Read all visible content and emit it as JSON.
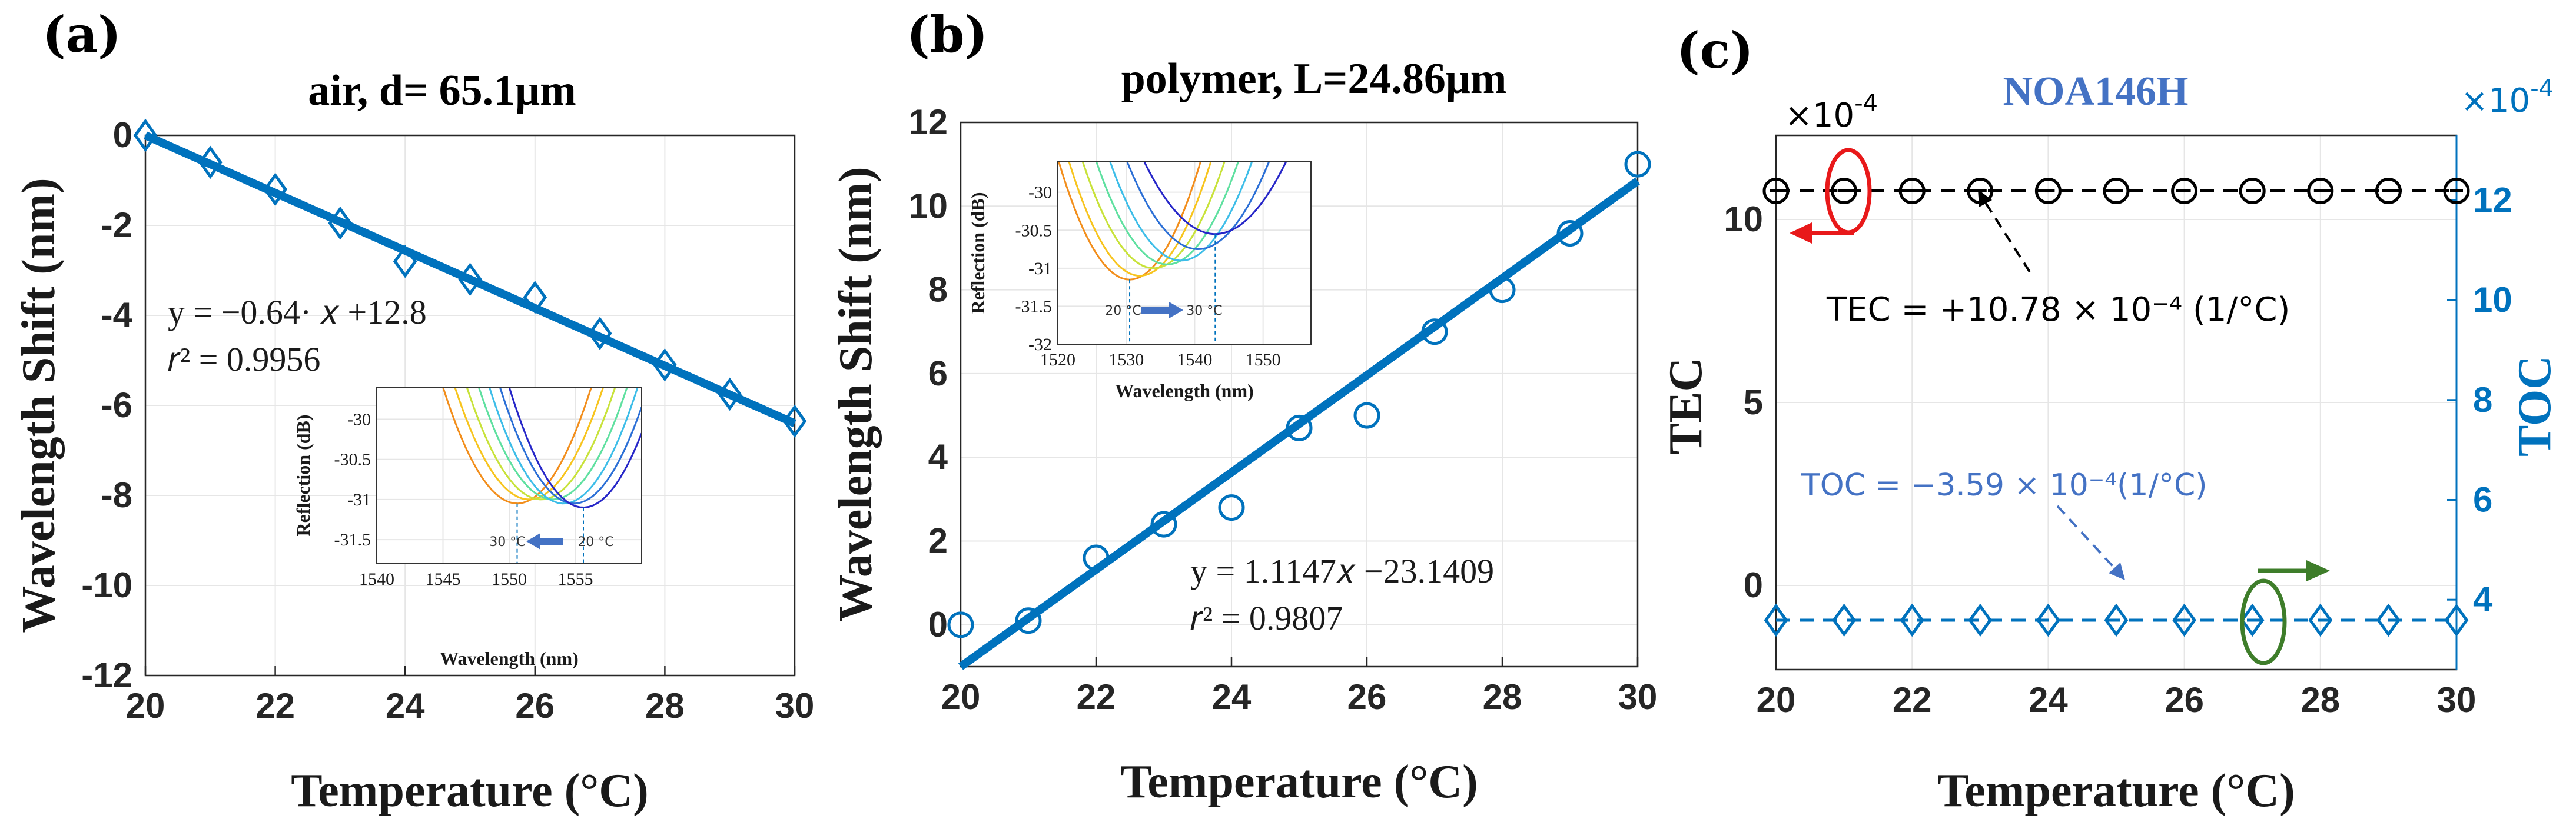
{
  "colors": {
    "main_blue": "#0072BD",
    "legend_blue": "#4472C4",
    "red": "#E8191A",
    "green": "#3E7D2A",
    "black": "#000000",
    "inset_curves": [
      "#F28E1C",
      "#F7C41E",
      "#C8E23A",
      "#5FE0A0",
      "#3DBDE8",
      "#2B6FD6",
      "#2626C8"
    ]
  },
  "chart_data": [
    {
      "panel": "(a)",
      "type": "scatter",
      "title": "air, d= 65.1μm",
      "xlabel": "Temperature (°C)",
      "ylabel": "Wavelength Shift (nm)",
      "xlim": [
        20,
        30
      ],
      "ylim": [
        -12,
        0
      ],
      "xticks": [
        "20",
        "22",
        "24",
        "26",
        "28",
        "30"
      ],
      "yticks": [
        "0",
        "-2",
        "-4",
        "-6",
        "-8",
        "-10",
        "-12"
      ],
      "marker": "diamond",
      "x": [
        20,
        21,
        22,
        23,
        24,
        25,
        26,
        27,
        28,
        29,
        30
      ],
      "y": [
        0,
        -0.6,
        -1.2,
        -1.95,
        -2.8,
        -3.2,
        -3.6,
        -4.4,
        -5.1,
        -5.75,
        -6.35
      ],
      "fit": {
        "slope": -0.64,
        "intercept": 12.8,
        "x_range": [
          20,
          30
        ],
        "y_range": [
          0,
          -6.4
        ]
      },
      "equation": "y = −0.64· 𝑥 +12.8",
      "r2": "𝑟² = 0.9956",
      "inset": {
        "ylabel": "Reflection (dB)",
        "xlabel": "Wavelength (nm)",
        "xlim": [
          1540,
          1560
        ],
        "ylim": [
          -31.8,
          -29.6
        ],
        "xticks": [
          "1540",
          "1545",
          "1550",
          "1555"
        ],
        "yticks": [
          "-30",
          "-30.5",
          "-31",
          "-31.5"
        ],
        "annotation_left": "30 °C",
        "annotation_right": "20 °C",
        "minima": [
          1550.6,
          1551.5,
          1552.4,
          1553.3,
          1554.1,
          1554.9,
          1555.6
        ],
        "min_values": [
          -31.05,
          -31.0,
          -31.0,
          -31.0,
          -31.05,
          -31.05,
          -31.1
        ]
      }
    },
    {
      "panel": "(b)",
      "type": "scatter",
      "title": "polymer, L=24.86μm",
      "xlabel": "Temperature (°C)",
      "ylabel": "Wavelength Shift (nm)",
      "xlim": [
        20,
        30
      ],
      "ylim": [
        -1,
        12
      ],
      "xticks": [
        "20",
        "22",
        "24",
        "26",
        "28",
        "30"
      ],
      "yticks": [
        "0",
        "2",
        "4",
        "6",
        "8",
        "10",
        "12"
      ],
      "marker": "circle",
      "x": [
        20,
        21,
        22,
        23,
        24,
        25,
        26,
        27,
        28,
        29,
        30
      ],
      "y": [
        0,
        0.1,
        1.6,
        2.4,
        2.8,
        4.7,
        5.0,
        7.0,
        8.0,
        9.35,
        11.0
      ],
      "fit": {
        "slope": 1.1147,
        "intercept": -23.1409,
        "x_range": [
          20,
          30
        ],
        "y_range": [
          -1.0,
          10.6
        ]
      },
      "equation": "y = 1.1147𝑥 −23.1409",
      "r2": "𝑟² = 0.9807",
      "inset": {
        "ylabel": "Reflection (dB)",
        "xlabel": "Wavelength (nm)",
        "xlim": [
          1520,
          1557
        ],
        "ylim": [
          -32,
          -29.6
        ],
        "xticks": [
          "1520",
          "1530",
          "1540",
          "1550"
        ],
        "yticks": [
          "-30",
          "-30.5",
          "-31",
          "-31.5",
          "-32"
        ],
        "annotation_left": "20 °C",
        "annotation_right": "30 °C",
        "minima": [
          1530.5,
          1532.0,
          1534.0,
          1536.0,
          1538.0,
          1540.5,
          1543.0
        ],
        "min_values": [
          -31.15,
          -31.1,
          -31.0,
          -30.95,
          -30.9,
          -30.75,
          -30.55
        ]
      }
    },
    {
      "panel": "(c)",
      "type": "scatter",
      "title": "NOA146H",
      "xlabel": "Temperature (°C)",
      "ylabel_left": "TEC",
      "ylabel_right": "TOC",
      "xlim": [
        20,
        30
      ],
      "ylim_left": [
        -2.3,
        12.3
      ],
      "ylim_right": [
        2.6,
        13.3
      ],
      "left_exponent": "×10",
      "right_exponent": "×10",
      "exponent_power": "-4",
      "xticks": [
        "20",
        "22",
        "24",
        "26",
        "28",
        "30"
      ],
      "yticks_left": [
        "0",
        "5",
        "10"
      ],
      "yticks_right": [
        "4",
        "6",
        "8",
        "10",
        "12"
      ],
      "series": [
        {
          "name": "TEC",
          "axis": "left",
          "marker": "circle",
          "x": [
            20,
            21,
            22,
            23,
            24,
            25,
            26,
            27,
            28,
            29,
            30
          ],
          "values": [
            10.78,
            10.78,
            10.78,
            10.78,
            10.78,
            10.78,
            10.78,
            10.78,
            10.78,
            10.78,
            10.78
          ]
        },
        {
          "name": "TOC",
          "axis": "right",
          "marker": "diamond",
          "x": [
            20,
            21,
            22,
            23,
            24,
            25,
            26,
            27,
            28,
            29,
            30
          ],
          "values": [
            3.59,
            3.59,
            3.59,
            3.59,
            3.59,
            3.59,
            3.59,
            3.59,
            3.59,
            3.59,
            3.59
          ]
        }
      ],
      "tec_annotation": "TEC =  +10.78 × 10⁻⁴ (1/°C)",
      "toc_annotation": "TOC = −3.59  × 10⁻⁴(1/°C)"
    }
  ]
}
